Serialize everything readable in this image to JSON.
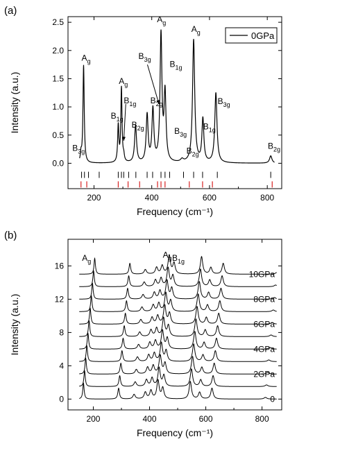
{
  "chart_data": [
    {
      "type": "line",
      "panel_label": "(a)",
      "xlabel": "Frequency (cm⁻¹)",
      "ylabel": "Intensity (a.u.)",
      "xlim": [
        110,
        850
      ],
      "ylim": [
        -0.45,
        2.6
      ],
      "xticks": [
        200,
        400,
        600,
        800
      ],
      "yticks": [
        0.0,
        0.5,
        1.0,
        1.5,
        2.0,
        2.5
      ],
      "ytick_labels": [
        "0.0",
        "0.5",
        "1.0",
        "1.5",
        "2.0",
        "2.5"
      ],
      "legend": {
        "label": "0GPa",
        "position": "top-right"
      },
      "series": [
        {
          "name": "0GPa",
          "peaks": [
            [
              155,
              0.15,
              2.5
            ],
            [
              164,
              1.73,
              2.6
            ],
            [
              284,
              0.65,
              2.5
            ],
            [
              295,
              1.32,
              2.5
            ],
            [
              303,
              0.1,
              2.5
            ],
            [
              344,
              0.66,
              4
            ],
            [
              384,
              0.84,
              4
            ],
            [
              404,
              0.93,
              4
            ],
            [
              432,
              2.25,
              4
            ],
            [
              446,
              1.2,
              4
            ],
            [
              505,
              0.05,
              6
            ],
            [
              545,
              2.18,
              4.5
            ],
            [
              577,
              0.77,
              4
            ],
            [
              622,
              1.24,
              4.5
            ],
            [
              812,
              0.13,
              5
            ]
          ]
        }
      ],
      "tick_marks_black": [
        157,
        167,
        181,
        218,
        284,
        295,
        303,
        320,
        345,
        384,
        403,
        432,
        446,
        462,
        510,
        545,
        576,
        627,
        812
      ],
      "tick_marks_red": [
        155,
        175,
        284,
        318,
        358,
        420,
        432,
        446,
        530,
        576,
        610,
        817
      ],
      "annotations": [
        {
          "text": "B",
          "sub": "3g",
          "at": [
            125,
            0.22
          ]
        },
        {
          "text": "A",
          "sub": "g",
          "at": [
            157,
            1.82
          ]
        },
        {
          "text": "B",
          "sub": "1g",
          "at": [
            258,
            0.79
          ]
        },
        {
          "text": "A",
          "sub": "g",
          "at": [
            286,
            1.41
          ]
        },
        {
          "text": "B",
          "sub": "1g",
          "at": [
            303,
            1.06
          ]
        },
        {
          "text": "B",
          "sub": "2g",
          "at": [
            330,
            0.63
          ]
        },
        {
          "text": "B",
          "sub": "3g",
          "at": [
            354,
            1.85
          ]
        },
        {
          "text": "B",
          "sub": "2g",
          "at": [
            395,
            1.06
          ]
        },
        {
          "text": "A",
          "sub": "g",
          "at": [
            418,
            2.5
          ]
        },
        {
          "text": "B",
          "sub": "1g",
          "at": [
            462,
            1.71
          ]
        },
        {
          "text": "B",
          "sub": "3g",
          "at": [
            478,
            0.52
          ]
        },
        {
          "text": "B",
          "sub": "2g",
          "at": [
            520,
            0.17
          ]
        },
        {
          "text": "A",
          "sub": "g",
          "at": [
            537,
            2.33
          ]
        },
        {
          "text": "B",
          "sub": "1g",
          "at": [
            578,
            0.6
          ]
        },
        {
          "text": "B",
          "sub": "3g",
          "at": [
            628,
            1.05
          ]
        },
        {
          "text": "B",
          "sub": "2g",
          "at": [
            802,
            0.26
          ]
        }
      ],
      "arrows": [
        [
          310,
          1.05,
          303,
          0.4
        ],
        [
          385,
          1.75,
          425,
          1.05
        ]
      ]
    },
    {
      "type": "line",
      "panel_label": "(b)",
      "xlabel": "Frequency (cm⁻¹)",
      "ylabel": "Intensity (a.u.)",
      "xlim": [
        110,
        870
      ],
      "ylim": [
        -1.3,
        19.2
      ],
      "xticks": [
        200,
        400,
        600,
        800
      ],
      "yticks": [
        0,
        4,
        8,
        12,
        16
      ],
      "annotations": [
        {
          "text": "A",
          "sub": "g",
          "at": [
            160,
            16.6
          ]
        },
        {
          "text": "A",
          "sub": "g",
          "at": [
            447,
            17.0
          ]
        },
        {
          "text": "B",
          "sub": "1g",
          "at": [
            480,
            16.6
          ]
        }
      ],
      "series": [
        {
          "name": "0",
          "offset": 0.0,
          "shift": 0
        },
        {
          "name": "",
          "offset": 1.5,
          "shift": 4
        },
        {
          "name": "2GPa",
          "offset": 3.0,
          "shift": 8
        },
        {
          "name": "",
          "offset": 4.5,
          "shift": 12
        },
        {
          "name": "4GPa",
          "offset": 6.0,
          "shift": 16
        },
        {
          "name": "",
          "offset": 7.5,
          "shift": 20
        },
        {
          "name": "6GPa",
          "offset": 9.0,
          "shift": 24
        },
        {
          "name": "",
          "offset": 10.5,
          "shift": 28
        },
        {
          "name": "8GPa",
          "offset": 12.0,
          "shift": 32
        },
        {
          "name": "",
          "offset": 13.5,
          "shift": 36
        },
        {
          "name": "10GPa",
          "offset": 15.0,
          "shift": 40
        }
      ],
      "base_peaks": [
        [
          165,
          1.9,
          3
        ],
        [
          290,
          1.3,
          3.5
        ],
        [
          345,
          0.55,
          5
        ],
        [
          385,
          0.8,
          5
        ],
        [
          405,
          1.0,
          5
        ],
        [
          430,
          2.2,
          5
        ],
        [
          447,
          1.3,
          5
        ],
        [
          545,
          2.1,
          5
        ],
        [
          578,
          0.8,
          5
        ],
        [
          622,
          1.3,
          5
        ],
        [
          812,
          0.2,
          6
        ]
      ]
    }
  ]
}
